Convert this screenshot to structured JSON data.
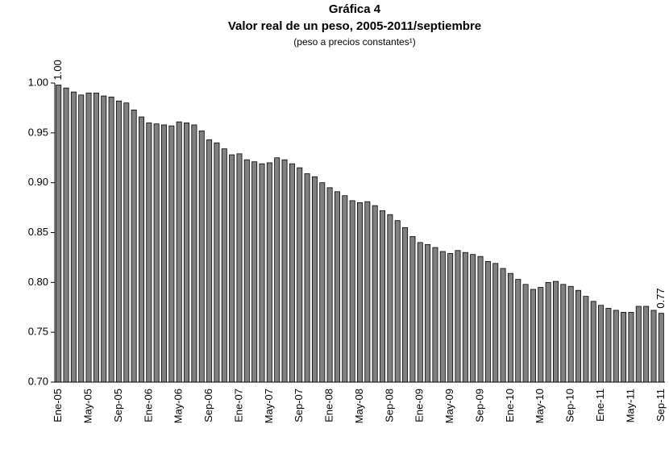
{
  "chart_data": {
    "type": "bar",
    "title": "Gráfica 4",
    "subtitle": "Valor real de un peso, 2005-2011/septiembre",
    "note": "(peso a precios constantes¹)",
    "categories": [
      "Ene-05",
      null,
      null,
      null,
      "May-05",
      null,
      null,
      null,
      "Sep-05",
      null,
      null,
      null,
      "Ene-06",
      null,
      null,
      null,
      "May-06",
      null,
      null,
      null,
      "Sep-06",
      null,
      null,
      null,
      "Ene-07",
      null,
      null,
      null,
      "May-07",
      null,
      null,
      null,
      "Sep-07",
      null,
      null,
      null,
      "Ene-08",
      null,
      null,
      null,
      "May-08",
      null,
      null,
      null,
      "Sep-08",
      null,
      null,
      null,
      "Ene-09",
      null,
      null,
      null,
      "May-09",
      null,
      null,
      null,
      "Sep-09",
      null,
      null,
      null,
      "Ene-10",
      null,
      null,
      null,
      "May-10",
      null,
      null,
      null,
      "Sep-10",
      null,
      null,
      null,
      "Ene-11",
      null,
      null,
      null,
      "May-11",
      null,
      null,
      null,
      "Sep-11"
    ],
    "values": [
      0.998,
      0.995,
      0.991,
      0.988,
      0.99,
      0.99,
      0.987,
      0.986,
      0.982,
      0.98,
      0.973,
      0.966,
      0.96,
      0.959,
      0.958,
      0.957,
      0.961,
      0.96,
      0.958,
      0.952,
      0.943,
      0.94,
      0.934,
      0.928,
      0.929,
      0.923,
      0.921,
      0.919,
      0.92,
      0.925,
      0.923,
      0.919,
      0.915,
      0.909,
      0.906,
      0.9,
      0.895,
      0.891,
      0.887,
      0.882,
      0.88,
      0.881,
      0.877,
      0.872,
      0.868,
      0.862,
      0.855,
      0.846,
      0.84,
      0.838,
      0.835,
      0.831,
      0.829,
      0.832,
      0.83,
      0.828,
      0.826,
      0.821,
      0.819,
      0.814,
      0.809,
      0.803,
      0.798,
      0.793,
      0.795,
      0.8,
      0.801,
      0.798,
      0.796,
      0.792,
      0.786,
      0.781,
      0.777,
      0.774,
      0.772,
      0.77,
      0.77,
      0.776,
      0.776,
      0.772,
      0.769
    ],
    "value_labels": [
      "1.00",
      null,
      null,
      null,
      null,
      null,
      null,
      null,
      null,
      null,
      null,
      null,
      null,
      null,
      null,
      null,
      null,
      null,
      null,
      null,
      null,
      null,
      null,
      null,
      null,
      null,
      null,
      null,
      null,
      null,
      null,
      null,
      null,
      null,
      null,
      null,
      null,
      null,
      null,
      null,
      null,
      null,
      null,
      null,
      null,
      null,
      null,
      null,
      null,
      null,
      null,
      null,
      null,
      null,
      null,
      null,
      null,
      null,
      null,
      null,
      null,
      null,
      null,
      null,
      null,
      null,
      null,
      null,
      null,
      null,
      null,
      null,
      null,
      null,
      null,
      null,
      null,
      null,
      null,
      null,
      "0.77"
    ],
    "color": "#808080",
    "ylim": [
      0.7,
      1.0
    ],
    "yticks": [
      {
        "value": 0.7,
        "label": "0.70"
      },
      0.75,
      {
        "value": 0.8,
        "label": "0.80"
      },
      0.85,
      {
        "value": 0.9,
        "label": "0.90"
      },
      0.95,
      {
        "value": 1.0,
        "label": "1.00"
      }
    ],
    "grid": false
  }
}
